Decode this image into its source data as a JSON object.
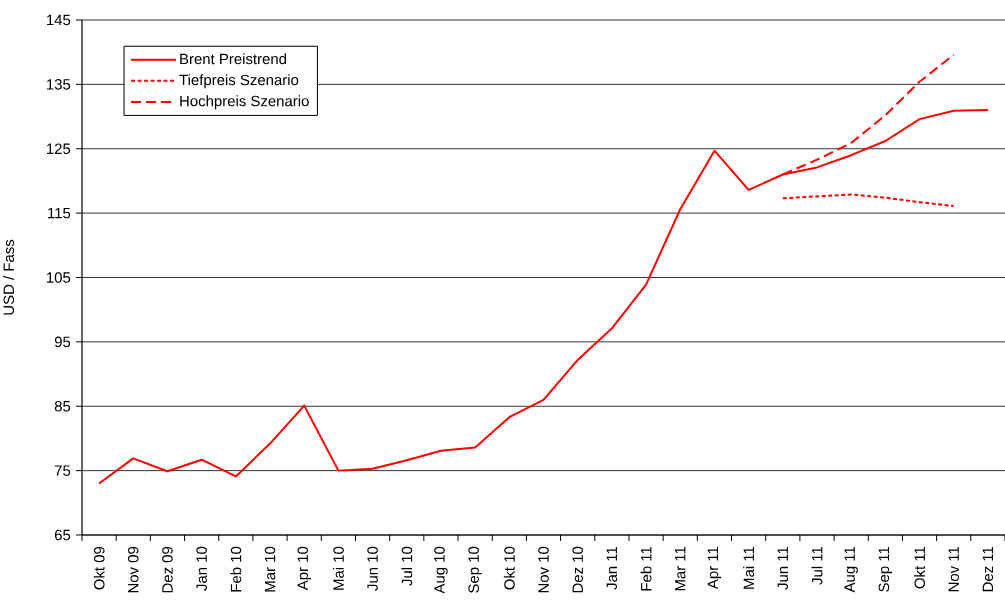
{
  "chart_data": {
    "type": "line",
    "ylabel": "USD / Fass",
    "categories": [
      "Okt 09",
      "Nov 09",
      "Dez 09",
      "Jan 10",
      "Feb 10",
      "Mar 10",
      "Apr 10",
      "Mai 10",
      "Jun 10",
      "Jul 10",
      "Aug 10",
      "Sep 10",
      "Okt 10",
      "Nov 10",
      "Dez 10",
      "Jan 11",
      "Feb 11",
      "Mar 11",
      "Apr 11",
      "Mai 11",
      "Jun 11",
      "Jul 11",
      "Aug 11",
      "Sep 11",
      "Okt 11",
      "Nov 11",
      "Dez 11"
    ],
    "series": [
      {
        "name": "Brent Preistrend",
        "color": "#ff0000",
        "line_style": "solid",
        "values": [
          73.0,
          76.9,
          74.9,
          76.7,
          74.1,
          79.2,
          85.1,
          75.0,
          75.3,
          76.6,
          78.1,
          78.6,
          83.3,
          86.0,
          92.2,
          97.1,
          103.9,
          115.6,
          124.7,
          118.6,
          121.0,
          122.1,
          124.0,
          126.2,
          129.6,
          130.9,
          131.0
        ]
      },
      {
        "name": "Tiefpreis Szenario",
        "color": "#ff0000",
        "line_style": "dotted",
        "values": [
          null,
          null,
          null,
          null,
          null,
          null,
          null,
          null,
          null,
          null,
          null,
          null,
          null,
          null,
          null,
          null,
          null,
          null,
          null,
          null,
          117.3,
          117.6,
          117.9,
          117.4,
          116.7,
          116.1,
          null
        ]
      },
      {
        "name": "Hochpreis Szenario",
        "color": "#ff0000",
        "line_style": "dashed",
        "values": [
          null,
          null,
          null,
          null,
          null,
          null,
          null,
          null,
          null,
          null,
          null,
          null,
          null,
          null,
          null,
          null,
          null,
          null,
          null,
          null,
          121.0,
          123.3,
          125.9,
          130.2,
          135.4,
          139.6,
          null
        ]
      }
    ],
    "ylim": [
      65,
      145
    ],
    "yticks": [
      65,
      75,
      85,
      95,
      105,
      115,
      125,
      135,
      145
    ],
    "grid": "y",
    "legend": "top left",
    "marker": "none"
  }
}
